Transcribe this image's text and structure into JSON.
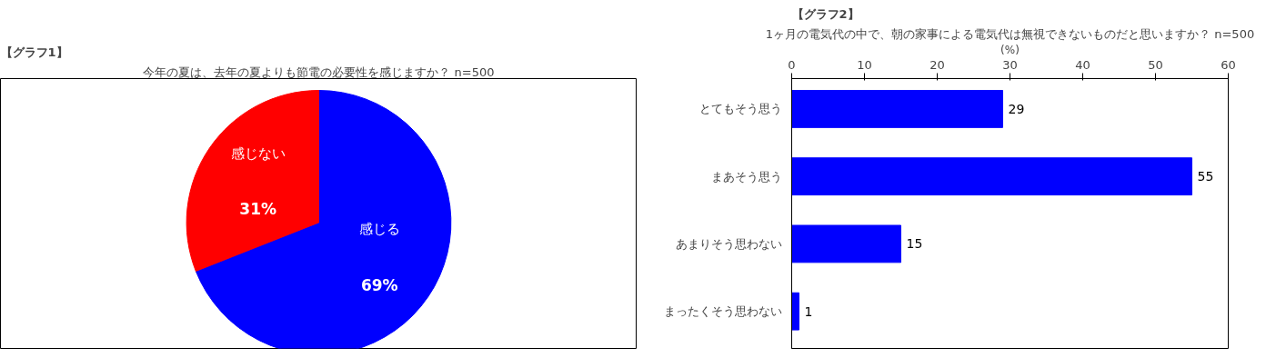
{
  "chart_data": [
    {
      "type": "pie",
      "title": "【グラフ1】",
      "subtitle": "今年の夏は、去年の夏よりも節電の必要性を感じますか？ n=500",
      "categories": [
        "感じる",
        "感じない"
      ],
      "values": [
        69,
        31
      ],
      "colors": [
        "#0000ff",
        "#ff0000"
      ],
      "value_labels": [
        "69%",
        "31%"
      ]
    },
    {
      "type": "bar",
      "orientation": "horizontal",
      "title": "【グラフ2】",
      "subtitle": "1ヶ月の電気代の中で、朝の家事による電気代は無視できないものだと思いますか？ n=500",
      "xlabel": "(%)",
      "categories": [
        "とてもそう思う",
        "まあそう思う",
        "あまりそう思わない",
        "まったくそう思わない"
      ],
      "series": [
        {
          "color": "#0000ff",
          "values": [
            29,
            55,
            15,
            1
          ]
        }
      ],
      "xlim": [
        0,
        60
      ],
      "xticks": [
        0,
        10,
        20,
        30,
        40,
        50,
        60
      ],
      "data_labels": true,
      "grid": false
    }
  ]
}
